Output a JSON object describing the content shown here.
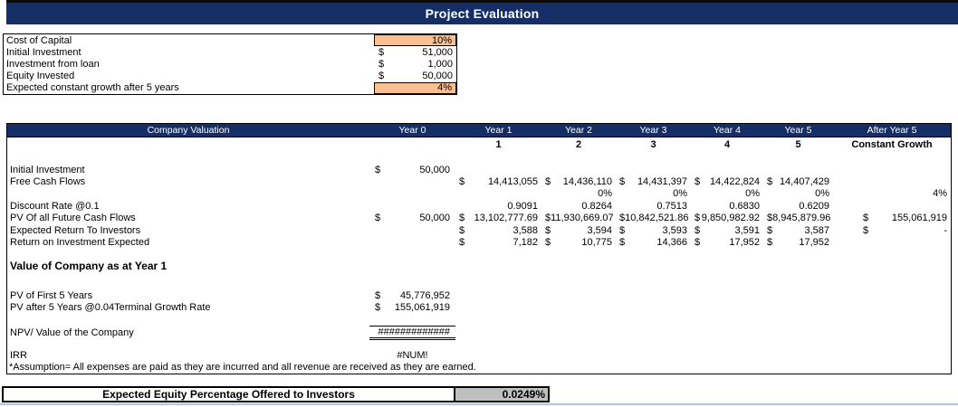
{
  "banner": {
    "title": "Project Evaluation"
  },
  "colors": {
    "navy": "#152F66",
    "orange": "#FBBF90",
    "cell_gray": "#BFBFBF",
    "grid_blue": "#A9C6E6"
  },
  "inputs_table": {
    "rows": [
      {
        "label": "Cost of Capital",
        "currency": "",
        "value": "10%",
        "highlight": true
      },
      {
        "label": "Initial Investment",
        "currency": "$",
        "value": "51,000",
        "highlight": false
      },
      {
        "label": "Investment from loan",
        "currency": "$",
        "value": "1,000",
        "highlight": false
      },
      {
        "label": "Equity Invested",
        "currency": "$",
        "value": "50,000",
        "highlight": false
      },
      {
        "label": "Expected constant growth after 5 years",
        "currency": "",
        "value": "4%",
        "highlight": true
      }
    ]
  },
  "valuation_table": {
    "header": [
      "Company Valuation",
      "Year 0",
      "Year 1",
      "Year 2",
      "Year 3",
      "Year 4",
      "Year 5",
      "After Year 5"
    ],
    "subheader": [
      "",
      "",
      "1",
      "2",
      "3",
      "4",
      "5",
      "Constant Growth"
    ],
    "rows": [
      {
        "type": "data",
        "label": "Initial Investment",
        "cells": [
          {
            "d": "$",
            "v": "50,000"
          },
          null,
          null,
          null,
          null,
          null,
          null
        ]
      },
      {
        "type": "data",
        "label": "Free Cash Flows",
        "cells": [
          null,
          {
            "d": "$",
            "v": "14,413,055"
          },
          {
            "d": "$",
            "v": "14,436,110"
          },
          {
            "d": "$",
            "v": "14,431,397"
          },
          {
            "d": "$",
            "v": "14,422,824"
          },
          {
            "d": "$",
            "v": "14,407,429"
          },
          null
        ]
      },
      {
        "type": "data",
        "label": "",
        "cells": [
          null,
          null,
          {
            "v": "0%"
          },
          {
            "v": "0%"
          },
          {
            "v": "0%"
          },
          {
            "v": "0%"
          },
          {
            "v": "4%"
          }
        ]
      },
      {
        "type": "data",
        "label": "Discount Rate @0.1",
        "cells": [
          null,
          {
            "v": "0.9091"
          },
          {
            "v": "0.8264"
          },
          {
            "v": "0.7513"
          },
          {
            "v": "0.6830"
          },
          {
            "v": "0.6209"
          },
          null
        ]
      },
      {
        "type": "data",
        "label": "PV Of all Future Cash Flows",
        "cells": [
          {
            "d": "$",
            "v": "50,000"
          },
          {
            "d": "$",
            "v": "13,102,777.69"
          },
          {
            "d": "$",
            "v": "11,930,669.07"
          },
          {
            "d": "$",
            "v": "10,842,521.86"
          },
          {
            "d": "$",
            "v": "9,850,982.92"
          },
          {
            "d": "$",
            "v": "8,945,879.96"
          },
          {
            "d": "$",
            "v": "155,061,919"
          }
        ]
      },
      {
        "type": "data",
        "label": "Expected Return To Investors",
        "cells": [
          null,
          {
            "d": "$",
            "v": "3,588"
          },
          {
            "d": "$",
            "v": "3,594"
          },
          {
            "d": "$",
            "v": "3,593"
          },
          {
            "d": "$",
            "v": "3,591"
          },
          {
            "d": "$",
            "v": "3,587"
          },
          {
            "d": "$",
            "v": "-"
          }
        ]
      },
      {
        "type": "data",
        "label": "Return on Investment Expected",
        "cells": [
          null,
          {
            "d": "$",
            "v": "7,182"
          },
          {
            "d": "$",
            "v": "10,775"
          },
          {
            "d": "$",
            "v": "14,366"
          },
          {
            "d": "$",
            "v": "17,952"
          },
          {
            "d": "$",
            "v": "17,952"
          },
          null
        ]
      },
      {
        "type": "blank",
        "h": 13
      },
      {
        "type": "section",
        "label": "Value of Company as at Year 1"
      },
      {
        "type": "blank",
        "h": 19
      },
      {
        "type": "data",
        "label": "PV of First 5 Years",
        "cells": [
          {
            "d": "$",
            "v": "45,776,952"
          },
          null,
          null,
          null,
          null,
          null,
          null
        ]
      },
      {
        "type": "data",
        "label": "PV after 5 Years @0.04Terminal Growth Rate",
        "cells": [
          {
            "d": "$",
            "v": "155,061,919"
          },
          null,
          null,
          null,
          null,
          null,
          null
        ]
      },
      {
        "type": "blank",
        "h": 13
      },
      {
        "type": "data",
        "label": "NPV/ Value of the Company",
        "cells": [
          {
            "v": "#############",
            "style": "total"
          },
          null,
          null,
          null,
          null,
          null,
          null
        ]
      },
      {
        "type": "blank",
        "h": 13
      },
      {
        "type": "data",
        "label": "IRR",
        "cells": [
          {
            "v": "#NUM!",
            "style": "center"
          },
          null,
          null,
          null,
          null,
          null,
          null
        ]
      },
      {
        "type": "note",
        "label": "*Assumption= All expenses are paid as they are incurred and all revenue are received as they are earned."
      }
    ]
  },
  "equity": {
    "label": "Expected Equity Percentage Offered to Investors",
    "value": "0.0249%"
  }
}
